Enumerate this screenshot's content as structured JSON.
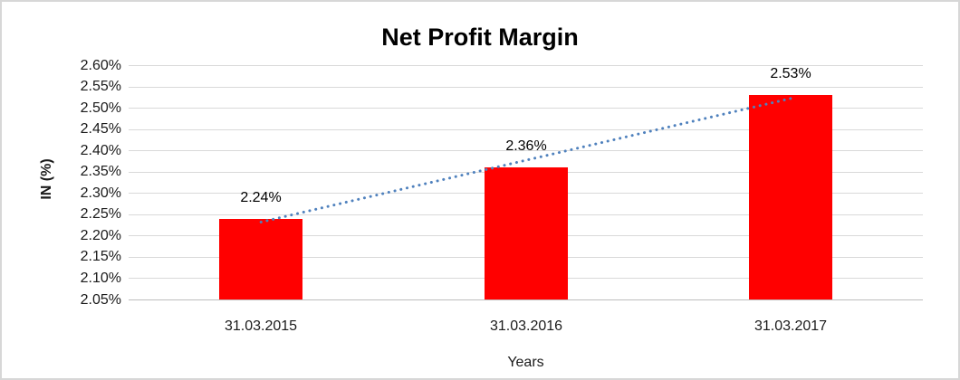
{
  "chart_data": {
    "type": "bar",
    "title": "Net Profit Margin",
    "categories": [
      "31.03.2015",
      "31.03.2016",
      "31.03.2017"
    ],
    "values": [
      2.24,
      2.36,
      2.53
    ],
    "data_labels": [
      "2.24%",
      "2.36%",
      "2.53%"
    ],
    "xlabel": "Years",
    "ylabel": "IN (%)",
    "ylim": [
      2.05,
      2.6
    ],
    "ytick_step": 0.05,
    "ytick_labels": [
      "2.60%",
      "2.55%",
      "2.50%",
      "2.45%",
      "2.40%",
      "2.35%",
      "2.30%",
      "2.25%",
      "2.20%",
      "2.15%",
      "2.10%",
      "2.05%"
    ],
    "grid": "horizontal",
    "legend": "none",
    "trendline": {
      "type": "linear",
      "style": "dotted"
    },
    "colors": {
      "bar": "#FF0000",
      "trendline": "#4F81BD",
      "gridline": "#D9D9D9",
      "axis_line": "#BDBDBD",
      "text": "#1A1A1A",
      "background": "#FFFFFF",
      "border": "#D7D7D7"
    }
  }
}
